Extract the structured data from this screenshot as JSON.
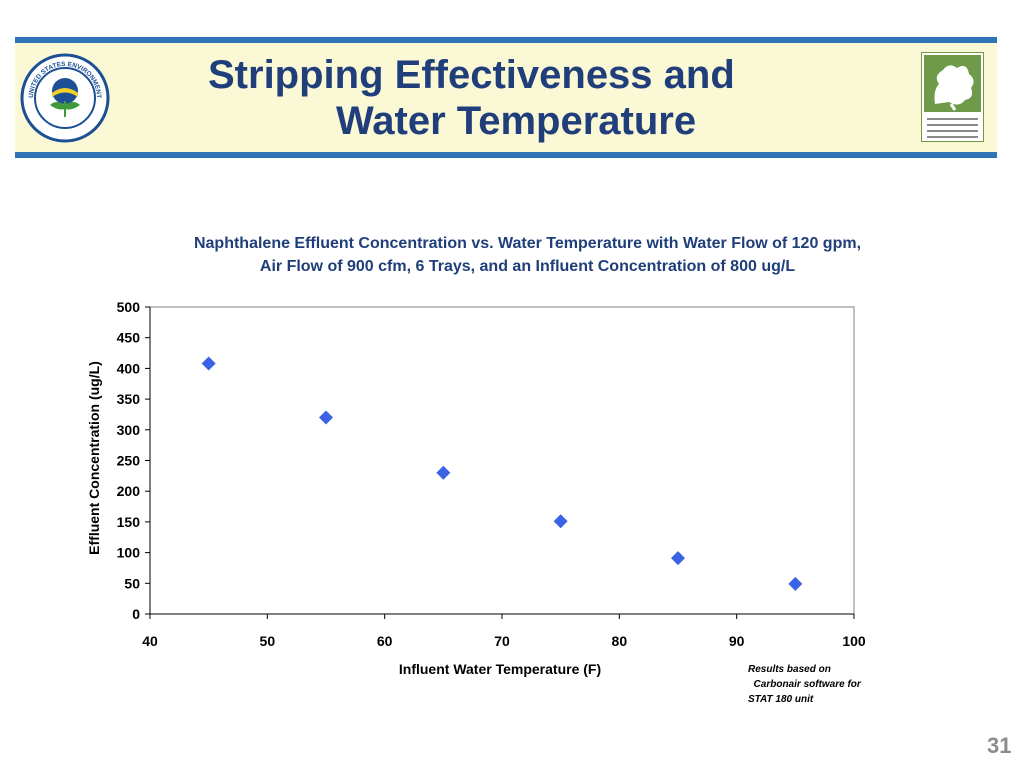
{
  "slide": {
    "title_line1": "Stripping Effectiveness and",
    "title_line2": "Water Temperature",
    "page_number": "31",
    "colors": {
      "banner_bar": "#2f73b8",
      "banner_bg": "#fbf8d6",
      "title": "#1f3e7a",
      "marker": "#3c62e6"
    }
  },
  "logos": {
    "epa_seal": "UNITED STATES ENVIRONMENTAL PROTECTION AGENCY",
    "mass_dep": "Massachusetts Department of Environmental Protection"
  },
  "note": {
    "line1": "Results based on",
    "line2": "  Carbonair software for",
    "line3": "STAT 180 unit"
  },
  "chart_data": {
    "type": "scatter",
    "title_line1": "Naphthalene Effluent Concentration vs. Water Temperature  with Water Flow of 120 gpm,",
    "title_line2": "Air Flow of 900 cfm, 6 Trays, and an Influent Concentration of 800 ug/L",
    "xlabel": "Influent Water Temperature (F)",
    "ylabel": "Effluent Concentration (ug/L)",
    "xlim": [
      40,
      100
    ],
    "ylim": [
      0,
      500
    ],
    "x_ticks": [
      40,
      50,
      60,
      70,
      80,
      90,
      100
    ],
    "y_ticks": [
      0,
      50,
      100,
      150,
      200,
      250,
      300,
      350,
      400,
      450,
      500
    ],
    "grid": false,
    "legend": "none",
    "marker": "diamond",
    "points": [
      {
        "x": 45,
        "y": 408
      },
      {
        "x": 55,
        "y": 320
      },
      {
        "x": 65,
        "y": 230
      },
      {
        "x": 75,
        "y": 151
      },
      {
        "x": 85,
        "y": 91
      },
      {
        "x": 95,
        "y": 49
      }
    ]
  }
}
